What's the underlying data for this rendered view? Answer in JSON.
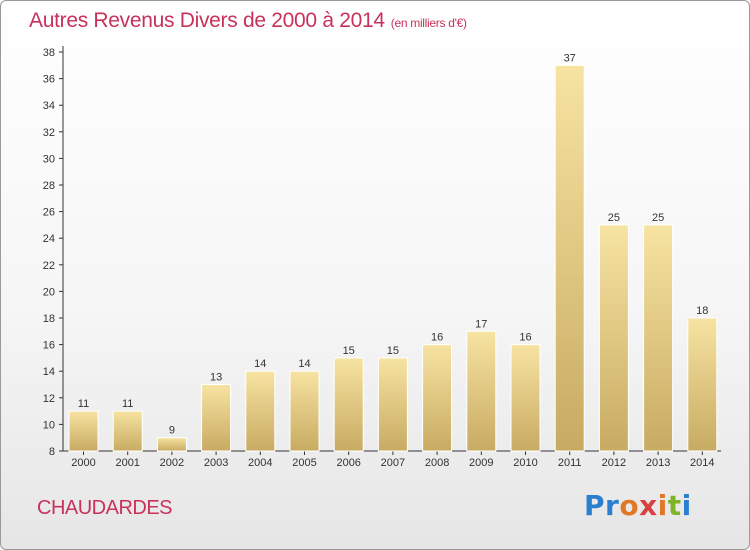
{
  "title": "Autres Revenus Divers de 2000 à 2014",
  "subtitle": "(en milliers d'€)",
  "commune": "CHAUDARDES",
  "logo_text": "Proxiti",
  "colors": {
    "title": "#c8325a",
    "bar_light": "#f7e3a2",
    "bar_dark": "#c8ab62",
    "logo_letters": [
      "#2a7fd0",
      "#2a7fd0",
      "#e07828",
      "#d94040",
      "#e07828",
      "#7fb32a",
      "#2a7fd0"
    ]
  },
  "chart_data": {
    "type": "bar",
    "title": "Autres Revenus Divers de 2000 à 2014",
    "subtitle": "(en milliers d'€)",
    "categories": [
      "2000",
      "2001",
      "2002",
      "2003",
      "2004",
      "2005",
      "2006",
      "2007",
      "2008",
      "2009",
      "2010",
      "2011",
      "2012",
      "2013",
      "2014"
    ],
    "values": [
      11,
      11,
      9,
      13,
      14,
      14,
      15,
      15,
      16,
      17,
      16,
      37,
      25,
      25,
      18
    ],
    "data_labels": [
      "11",
      "11",
      "9",
      "13",
      "14",
      "14",
      "15",
      "15",
      "16",
      "17",
      "16",
      "37",
      "25",
      "25",
      "18"
    ],
    "ylim": [
      8,
      38
    ],
    "yticks": [
      8,
      10,
      12,
      14,
      16,
      18,
      20,
      22,
      24,
      26,
      28,
      30,
      32,
      34,
      36,
      38
    ],
    "grid": false,
    "xlabel": "",
    "ylabel": ""
  }
}
